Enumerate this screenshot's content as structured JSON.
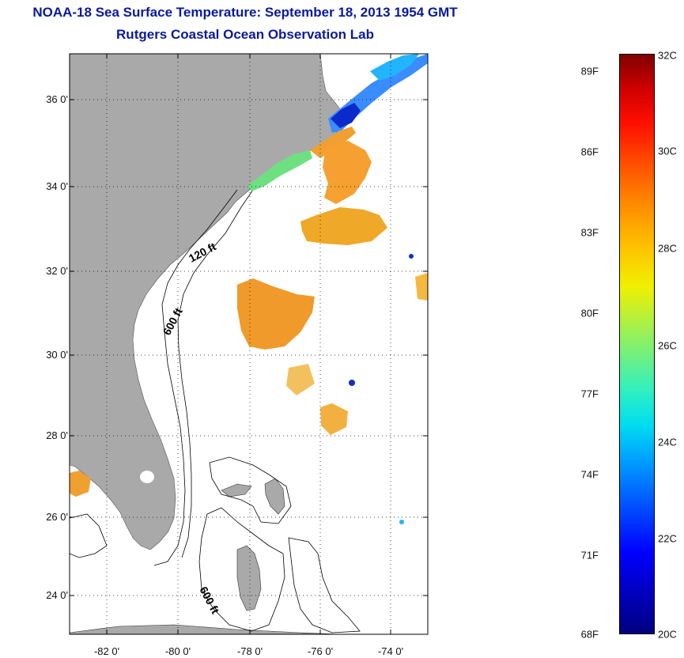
{
  "title": "NOAA-18 Sea Surface Temperature:  September 18, 2013 1954 GMT",
  "subtitle": "Rutgers Coastal Ocean Observation Lab",
  "map": {
    "lat_ticks": [
      "36 0'",
      "34 0'",
      "32 0'",
      "30 0'",
      "28 0'",
      "26 0'",
      "24 0'"
    ],
    "lon_ticks": [
      "-82 0'",
      "-80 0'",
      "-78 0'",
      "-76 0'",
      "-74 0'"
    ],
    "contour_labels": [
      "120 ft",
      "600 ft",
      "600 ft"
    ],
    "land_color": "#a9a9a9"
  },
  "colorbar": {
    "fahrenheit": [
      "89F",
      "86F",
      "83F",
      "80F",
      "77F",
      "74F",
      "71F",
      "68F"
    ],
    "celsius": [
      "32C",
      "30C",
      "28C",
      "26C",
      "24C",
      "22C",
      "20C"
    ],
    "range_c": [
      20,
      32
    ]
  }
}
